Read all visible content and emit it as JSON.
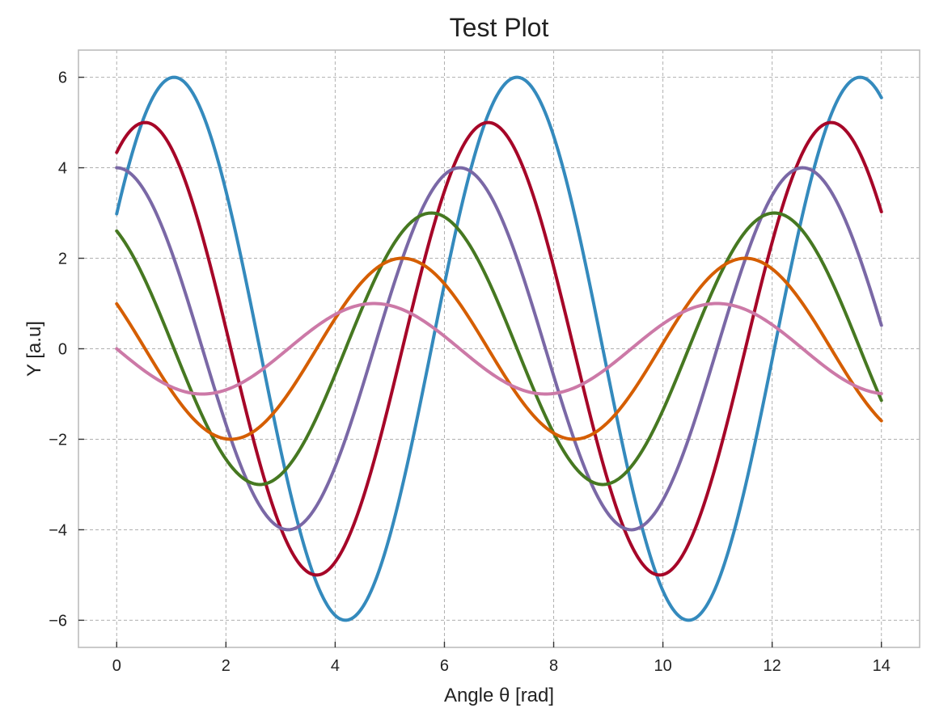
{
  "chart_data": {
    "type": "line",
    "title": "Test Plot",
    "xlabel": "Angle θ [rad]",
    "ylabel": "Y [a.u]",
    "xlim": [
      -0.7,
      14.7
    ],
    "ylim": [
      -6.6,
      6.6
    ],
    "xticks": [
      0,
      2,
      4,
      6,
      8,
      10,
      12,
      14
    ],
    "yticks": [
      -6,
      -4,
      -2,
      0,
      2,
      4,
      6
    ],
    "xtick_labels": [
      "0",
      "2",
      "4",
      "6",
      "8",
      "10",
      "12",
      "14"
    ],
    "ytick_labels": [
      "−6",
      "−4",
      "−2",
      "0",
      "2",
      "4",
      "6"
    ],
    "grid": true,
    "legend": "none",
    "x_range": [
      0,
      14
    ],
    "series": [
      {
        "color": "#348ABD",
        "amplitude": 6,
        "peak_x": 1.05,
        "period": 6.28,
        "points": [
          [
            0,
            2.8
          ],
          [
            1.05,
            6
          ],
          [
            4.19,
            -6
          ],
          [
            7.33,
            6
          ],
          [
            10.47,
            -6
          ],
          [
            13.61,
            6
          ],
          [
            14,
            5.6
          ]
        ]
      },
      {
        "color": "#A60628",
        "amplitude": 5,
        "peak_x": 0.52,
        "period": 6.28,
        "points": [
          [
            0,
            4.2
          ],
          [
            0.52,
            5
          ],
          [
            3.67,
            -5
          ],
          [
            6.81,
            5
          ],
          [
            9.95,
            -5
          ],
          [
            13.09,
            5
          ],
          [
            14,
            3.2
          ]
        ]
      },
      {
        "color": "#7A68A6",
        "amplitude": 4,
        "peak_x": 0.0,
        "period": 6.28,
        "points": [
          [
            0,
            4
          ],
          [
            3.14,
            -4
          ],
          [
            6.28,
            4
          ],
          [
            9.42,
            -4
          ],
          [
            12.57,
            4
          ],
          [
            14,
            0.8
          ]
        ]
      },
      {
        "color": "#467821",
        "amplitude": 3,
        "peak_x": -0.52,
        "period": 6.28,
        "points": [
          [
            0,
            2.7
          ],
          [
            2.62,
            -3
          ],
          [
            5.76,
            3
          ],
          [
            8.9,
            -3
          ],
          [
            12.04,
            3
          ],
          [
            14,
            -0.9
          ]
        ]
      },
      {
        "color": "#D55E00",
        "amplitude": 2,
        "peak_x": -1.05,
        "period": 6.28,
        "points": [
          [
            0,
            1.2
          ],
          [
            2.09,
            -2
          ],
          [
            5.24,
            2
          ],
          [
            8.38,
            -2
          ],
          [
            11.52,
            2
          ],
          [
            14,
            -1.4
          ]
        ]
      },
      {
        "color": "#CC79A7",
        "amplitude": 1,
        "peak_x": -1.57,
        "period": 6.28,
        "points": [
          [
            0,
            0.1
          ],
          [
            1.57,
            -1
          ],
          [
            4.71,
            1
          ],
          [
            7.85,
            -1
          ],
          [
            10.99,
            1
          ],
          [
            14,
            -0.95
          ]
        ]
      }
    ]
  }
}
